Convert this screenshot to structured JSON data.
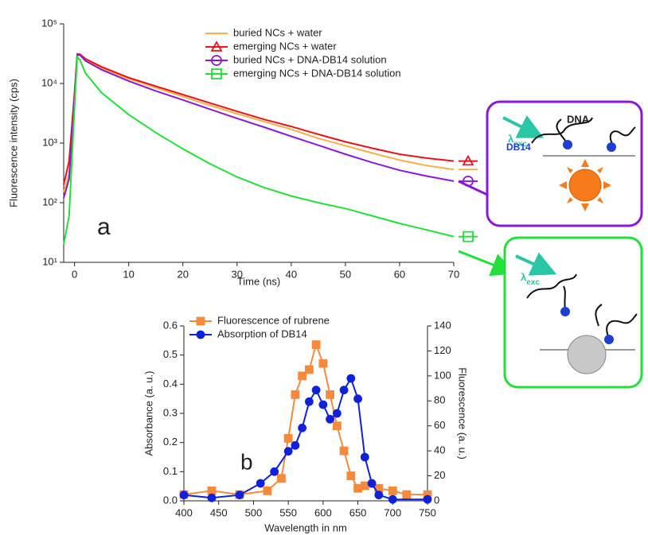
{
  "chart_data": [
    {
      "type": "line",
      "log_y": true,
      "x_label": "Time (ns)",
      "y_label": "Fluorescence intensity (cps)",
      "annotation": "a",
      "xlim": [
        -2,
        70
      ],
      "xticks": [
        0,
        10,
        20,
        30,
        40,
        50,
        60,
        70
      ],
      "ylim": [
        10,
        100000
      ],
      "yticks": [
        {
          "value": 10,
          "label": "10¹"
        },
        {
          "value": 100,
          "label": "10²"
        },
        {
          "value": 1000,
          "label": "10³"
        },
        {
          "value": 10000,
          "label": "10⁴"
        },
        {
          "value": 100000,
          "label": "10⁵"
        }
      ],
      "x": [
        -2,
        -1,
        0,
        0.5,
        1,
        2,
        5,
        10,
        15,
        20,
        25,
        30,
        35,
        40,
        45,
        50,
        55,
        60,
        65,
        70
      ],
      "series": [
        {
          "name": "buried NCs + water",
          "color": "#f7b048",
          "marker": "none",
          "values": [
            150,
            300,
            6000,
            30000,
            30000,
            25000,
            18000,
            12000,
            8500,
            6000,
            4300,
            3100,
            2300,
            1700,
            1200,
            900,
            680,
            520,
            420,
            360
          ]
        },
        {
          "name": "emerging NCs + water",
          "color": "#e8131b",
          "marker": "triangle",
          "values": [
            200,
            500,
            7000,
            31000,
            31000,
            26000,
            19000,
            12500,
            9000,
            6500,
            4700,
            3400,
            2500,
            1900,
            1400,
            1050,
            820,
            650,
            560,
            500
          ]
        },
        {
          "name": "buried NCs + DNA-DB14 solution",
          "color": "#8a19d6",
          "marker": "circle",
          "values": [
            120,
            250,
            5500,
            30000,
            30000,
            24000,
            17000,
            11000,
            7500,
            5300,
            3700,
            2600,
            1850,
            1300,
            920,
            650,
            470,
            350,
            280,
            230
          ]
        },
        {
          "name": "emerging NCs + DNA-DB14 solution",
          "color": "#22e03a",
          "marker": "square",
          "values": [
            20,
            60,
            4000,
            28000,
            25000,
            15000,
            7000,
            3000,
            1500,
            800,
            450,
            270,
            180,
            130,
            100,
            80,
            60,
            45,
            35,
            27
          ]
        }
      ]
    },
    {
      "type": "line",
      "annotation": "b",
      "x_label": "Wavelength in nm",
      "y_label": "Absorbance (a. u.)",
      "y2_label": "Fluorescence (a. u.)",
      "xlim": [
        400,
        750
      ],
      "xticks": [
        400,
        450,
        500,
        550,
        600,
        650,
        700,
        750
      ],
      "ylim": [
        0,
        0.6
      ],
      "yticks": [
        {
          "value": 0,
          "label": "0.0"
        },
        0.1,
        0.2,
        0.3,
        0.4,
        0.5,
        0.6
      ],
      "y2lim": [
        0,
        140
      ],
      "y2ticks": [
        0,
        20,
        40,
        60,
        80,
        100,
        120,
        140
      ],
      "series": [
        {
          "name": "Fluorescence of rubrene",
          "color": "#f58a3c",
          "marker": "square",
          "axis": "y2",
          "x": [
            400,
            440,
            480,
            520,
            540,
            550,
            560,
            570,
            580,
            590,
            600,
            610,
            620,
            630,
            640,
            650,
            660,
            680,
            700,
            720,
            750
          ],
          "values": [
            5,
            8,
            5,
            8,
            18,
            50,
            85,
            100,
            105,
            125,
            110,
            85,
            60,
            40,
            20,
            10,
            12,
            10,
            8,
            5,
            5
          ]
        },
        {
          "name": "Absorption of DB14",
          "color": "#1022d8",
          "marker": "circle",
          "x": [
            400,
            440,
            480,
            510,
            530,
            550,
            560,
            570,
            580,
            590,
            600,
            610,
            620,
            630,
            640,
            650,
            660,
            670,
            680,
            700,
            750
          ],
          "values": [
            0.02,
            0.01,
            0.02,
            0.06,
            0.1,
            0.17,
            0.19,
            0.25,
            0.34,
            0.38,
            0.33,
            0.28,
            0.3,
            0.38,
            0.42,
            0.35,
            0.15,
            0.06,
            0.02,
            0.005,
            0.005
          ]
        }
      ]
    }
  ],
  "schematic": {
    "top_panel": {
      "excitation": "λ",
      "excitation_sub": "exc",
      "strand_label": "DNA",
      "dye_label": "DB14"
    },
    "bottom_panel": {
      "excitation": "λ",
      "excitation_sub": "exc"
    }
  }
}
